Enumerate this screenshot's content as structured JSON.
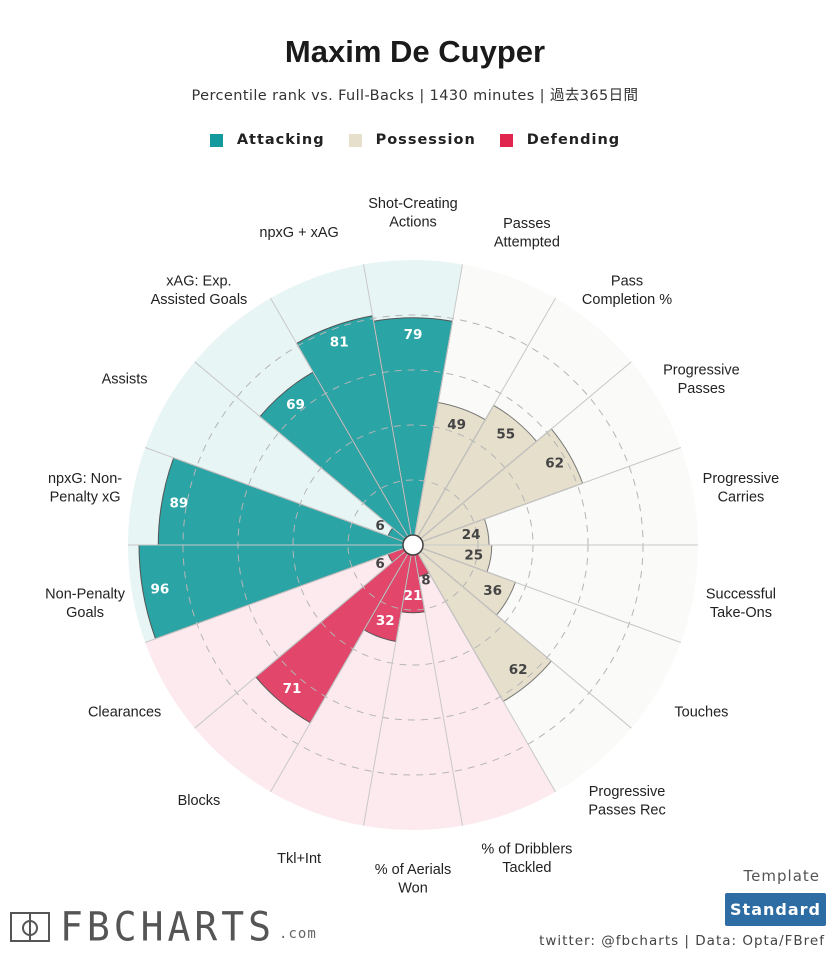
{
  "header": {
    "title": "Maxim De Cuyper",
    "subtitle": "Percentile rank vs. Full-Backs | 1430 minutes | 過去365日間"
  },
  "legend": [
    {
      "label": "Attacking",
      "color": "#139a9c"
    },
    {
      "label": "Possession",
      "color": "#e6dfcc"
    },
    {
      "label": "Defending",
      "color": "#e0264f"
    }
  ],
  "chart_data": {
    "type": "radar-bar",
    "title": "Maxim De Cuyper",
    "scale": [
      0,
      100
    ],
    "rings": [
      20,
      40,
      60,
      80
    ],
    "start_category": "Shot-Creating Actions",
    "direction": "clockwise",
    "categories": [
      {
        "label": "Shot-Creating\nActions",
        "value": 79,
        "group": "Attacking"
      },
      {
        "label": "Passes\nAttempted",
        "value": 49,
        "group": "Possession"
      },
      {
        "label": "Pass\nCompletion %",
        "value": 55,
        "group": "Possession"
      },
      {
        "label": "Progressive\nPasses",
        "value": 62,
        "group": "Possession"
      },
      {
        "label": "Progressive\nCarries",
        "value": 24,
        "group": "Possession"
      },
      {
        "label": "Successful\nTake-Ons",
        "value": 25,
        "group": "Possession"
      },
      {
        "label": "Touches",
        "value": 36,
        "group": "Possession"
      },
      {
        "label": "Progressive\nPasses Rec",
        "value": 62,
        "group": "Possession"
      },
      {
        "label": "% of Dribblers\nTackled",
        "value": 8,
        "group": "Defending"
      },
      {
        "label": "% of Aerials\nWon",
        "value": 21,
        "group": "Defending"
      },
      {
        "label": "Tkl+Int",
        "value": 32,
        "group": "Defending"
      },
      {
        "label": "Blocks",
        "value": 71,
        "group": "Defending"
      },
      {
        "label": "Clearances",
        "value": 6,
        "group": "Defending"
      },
      {
        "label": "Non-Penalty\nGoals",
        "value": 96,
        "group": "Attacking"
      },
      {
        "label": "npxG: Non-\nPenalty xG",
        "value": 89,
        "group": "Attacking"
      },
      {
        "label": "Assists",
        "value": 6,
        "group": "Attacking"
      },
      {
        "label": "xAG: Exp.\nAssisted Goals",
        "value": 69,
        "group": "Attacking"
      },
      {
        "label": "npxG + xAG",
        "value": 81,
        "group": "Attacking"
      }
    ],
    "group_colors": {
      "Attacking": {
        "fill": "#2ba4a6",
        "bg": "#e8f5f5",
        "stroke": "#555555",
        "text": "#ffffff"
      },
      "Possession": {
        "fill": "#e6dfcc",
        "bg": "#fafaf8",
        "stroke": "#777777",
        "text": "#444444"
      },
      "Defending": {
        "fill": "#e2466a",
        "bg": "#fdeaef",
        "stroke": "#555555",
        "text": "#ffffff"
      }
    }
  },
  "footer": {
    "logo_text": "FBCHARTS",
    "logo_suffix": ".com",
    "template_label": "Template",
    "template_value": "Standard",
    "credits": "twitter: @fbcharts | Data: Opta/FBref"
  }
}
